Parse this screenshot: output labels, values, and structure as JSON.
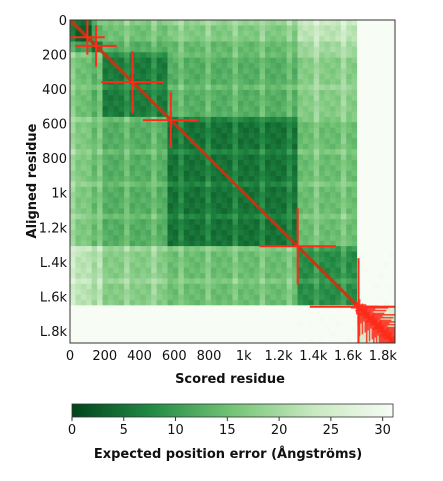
{
  "chart_data": {
    "type": "heatmap",
    "xlabel": "Scored residue",
    "ylabel": "Aligned residue",
    "xlim": [
      0,
      1870
    ],
    "ylim": [
      0,
      1870
    ],
    "x_ticks": [
      {
        "value": 0,
        "label": "0"
      },
      {
        "value": 200,
        "label": "200"
      },
      {
        "value": 400,
        "label": "400"
      },
      {
        "value": 600,
        "label": "600"
      },
      {
        "value": 800,
        "label": "800"
      },
      {
        "value": 1000,
        "label": "1k"
      },
      {
        "value": 1200,
        "label": "1.2k"
      },
      {
        "value": 1400,
        "label": "1.4k"
      },
      {
        "value": 1600,
        "label": "1.6k"
      },
      {
        "value": 1800,
        "label": "1.8k"
      }
    ],
    "y_ticks": [
      {
        "value": 0,
        "label": "0"
      },
      {
        "value": 200,
        "label": "200"
      },
      {
        "value": 400,
        "label": "400"
      },
      {
        "value": 600,
        "label": "600"
      },
      {
        "value": 800,
        "label": "800"
      },
      {
        "value": 1000,
        "label": "1k"
      },
      {
        "value": 1200,
        "label": "1.2k"
      },
      {
        "value": 1400,
        "label": "L.4k"
      },
      {
        "value": 1600,
        "label": "L.6k"
      },
      {
        "value": 1800,
        "label": "L.8k"
      }
    ],
    "domains": [
      {
        "start": 0,
        "end": 120,
        "error": 3
      },
      {
        "start": 120,
        "end": 180,
        "error": 4
      },
      {
        "start": 180,
        "end": 560,
        "error": 6
      },
      {
        "start": 560,
        "end": 1300,
        "error": 5
      },
      {
        "start": 1300,
        "end": 1650,
        "error": 8
      },
      {
        "start": 1650,
        "end": 1870,
        "error": 25
      }
    ],
    "colorbar": {
      "label": "Expected position error (Ångströms)",
      "min": 0,
      "max": 31,
      "ticks": [
        0,
        5,
        10,
        15,
        20,
        25,
        30
      ],
      "colors": [
        "#00441b",
        "#238b45",
        "#74c476",
        "#c7e9c0",
        "#f7fcf5"
      ]
    },
    "overlay": {
      "diagonal_color": "#cc3311",
      "cross_color": "#ff2a1a",
      "crosses": [
        {
          "x": 100,
          "y": 100,
          "err": 100
        },
        {
          "x": 150,
          "y": 150,
          "err": 120
        },
        {
          "x": 360,
          "y": 360,
          "err": 180
        },
        {
          "x": 580,
          "y": 580,
          "err": 160
        },
        {
          "x": 1310,
          "y": 1310,
          "err": 220
        },
        {
          "x": 1660,
          "y": 1660,
          "err": 280
        }
      ]
    }
  }
}
